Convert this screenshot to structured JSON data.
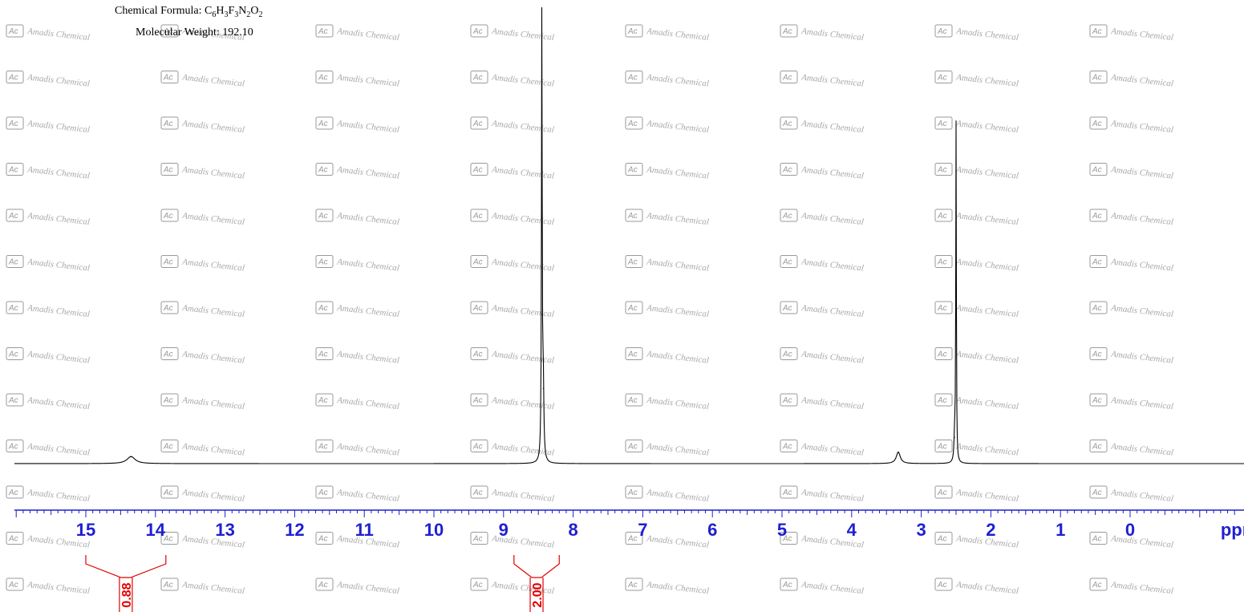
{
  "header": {
    "formula_label": "Chemical Formula: ",
    "formula_parts": [
      {
        "t": "C",
        "sub": false
      },
      {
        "t": "6",
        "sub": true
      },
      {
        "t": "H",
        "sub": false
      },
      {
        "t": "3",
        "sub": true
      },
      {
        "t": "F",
        "sub": false
      },
      {
        "t": "3",
        "sub": true
      },
      {
        "t": "N",
        "sub": false
      },
      {
        "t": "2",
        "sub": true
      },
      {
        "t": "O",
        "sub": false
      },
      {
        "t": "2",
        "sub": true
      }
    ],
    "molecular_weight": "Molecular Weight: 192.10"
  },
  "watermark": {
    "logo_text": "Ac",
    "text": "Amadis Chemical"
  },
  "colors": {
    "spectrum": "#000000",
    "axis": "#1f1fd0",
    "integral": "#e00000",
    "watermark": "#a8a8a8"
  },
  "chart_data": {
    "type": "line",
    "title": "",
    "xlabel": "ppm",
    "ylabel": "",
    "x_reversed": true,
    "xlim": [
      16.1,
      -1.6
    ],
    "ylim": [
      -0.02,
      1.0
    ],
    "x_ticks": [
      "15",
      "14",
      "13",
      "12",
      "11",
      "10",
      "9",
      "8",
      "7",
      "6",
      "5",
      "4",
      "3",
      "2",
      "1",
      "0"
    ],
    "grid": false,
    "legend": "none",
    "series": [
      {
        "peaks": [
          {
            "x": 14.35,
            "height": 0.016,
            "width": 0.14
          },
          {
            "x": 8.45,
            "height": 1.0,
            "width": 0.012
          },
          {
            "x": 8.43,
            "height": 0.17,
            "width": 0.02
          },
          {
            "x": 3.33,
            "height": 0.026,
            "width": 0.07
          },
          {
            "x": 2.5,
            "height": 0.76,
            "width": 0.01
          },
          {
            "x": 2.52,
            "height": 0.06,
            "width": 0.02
          }
        ]
      }
    ],
    "integrals": [
      {
        "from": 15.0,
        "to": 13.85,
        "value": "0.88"
      },
      {
        "from": 8.85,
        "to": 8.2,
        "value": "2.00"
      }
    ]
  }
}
